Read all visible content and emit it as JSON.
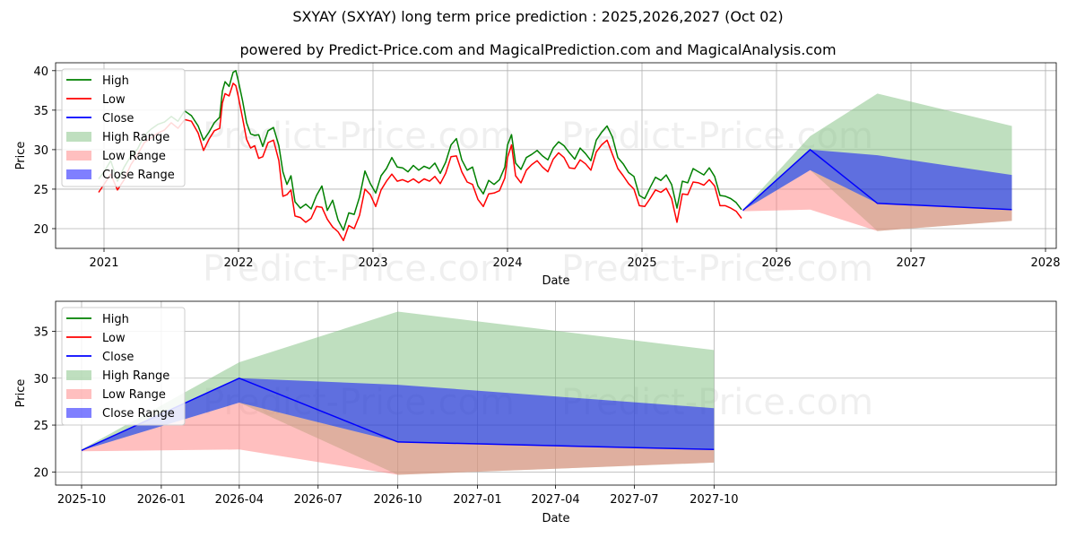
{
  "title": "SXYAY (SXYAY) long term price prediction : 2025,2026,2027 (Oct 02)",
  "subtitle": "powered by Predict-Price.com and MagicalPrediction.com and MagicalAnalysis.com",
  "watermark": "Predict-Price.com",
  "colors": {
    "high": "#008000",
    "low": "#ff0000",
    "close": "#0000ff",
    "high_range": "#7fbf7f",
    "low_range": "#ff7f7f",
    "close_range": "#0000ff",
    "grid": "#b0b0b0"
  },
  "legend": [
    "High",
    "Low",
    "Close",
    "High Range",
    "Low Range",
    "Close Range"
  ],
  "chart_data": [
    {
      "type": "line",
      "name": "history-and-forecast",
      "xlabel": "Date",
      "ylabel": "Price",
      "xlim": [
        2020.64,
        2028.08
      ],
      "ylim": [
        17.5,
        41
      ],
      "xticks": [
        2021,
        2022,
        2023,
        2024,
        2025,
        2026,
        2027,
        2028
      ],
      "xtick_labels": [
        "2021",
        "2022",
        "2023",
        "2024",
        "2025",
        "2026",
        "2027",
        "2028"
      ],
      "yticks": [
        20,
        25,
        30,
        35,
        40
      ],
      "grid": true,
      "legend_position": "top-left",
      "history": {
        "x": [
          2020.96,
          2021.0,
          2021.05,
          2021.1,
          2021.15,
          2021.2,
          2021.25,
          2021.3,
          2021.35,
          2021.4,
          2021.45,
          2021.5,
          2021.55,
          2021.6,
          2021.65,
          2021.7,
          2021.74,
          2021.78,
          2021.82,
          2021.86,
          2021.88,
          2021.9,
          2021.93,
          2021.96,
          2021.98,
          2022.0,
          2022.03,
          2022.06,
          2022.09,
          2022.12,
          2022.15,
          2022.18,
          2022.22,
          2022.26,
          2022.3,
          2022.33,
          2022.36,
          2022.39,
          2022.42,
          2022.46,
          2022.5,
          2022.54,
          2022.58,
          2022.62,
          2022.66,
          2022.7,
          2022.74,
          2022.78,
          2022.82,
          2022.86,
          2022.9,
          2022.94,
          2022.98,
          2023.02,
          2023.06,
          2023.1,
          2023.14,
          2023.18,
          2023.22,
          2023.26,
          2023.3,
          2023.34,
          2023.38,
          2023.42,
          2023.46,
          2023.5,
          2023.54,
          2023.58,
          2023.62,
          2023.66,
          2023.7,
          2023.74,
          2023.78,
          2023.82,
          2023.86,
          2023.9,
          2023.94,
          2023.98,
          2024.0,
          2024.03,
          2024.06,
          2024.1,
          2024.14,
          2024.18,
          2024.22,
          2024.26,
          2024.3,
          2024.34,
          2024.38,
          2024.42,
          2024.46,
          2024.5,
          2024.54,
          2024.58,
          2024.62,
          2024.66,
          2024.7,
          2024.74,
          2024.78,
          2024.82,
          2024.86,
          2024.9,
          2024.94,
          2024.98,
          2025.02,
          2025.06,
          2025.1,
          2025.14,
          2025.18,
          2025.22,
          2025.26,
          2025.3,
          2025.34,
          2025.38,
          2025.42,
          2025.46,
          2025.5,
          2025.54,
          2025.58,
          2025.62,
          2025.66,
          2025.7,
          2025.74
        ],
        "high": [
          26.3,
          27.2,
          28.6,
          26.0,
          27.8,
          29.2,
          30.1,
          31.8,
          32.6,
          33.2,
          33.5,
          34.2,
          33.6,
          34.9,
          34.3,
          33.0,
          31.2,
          32.2,
          33.4,
          34.1,
          37.4,
          38.6,
          38.0,
          39.8,
          40.0,
          38.6,
          36.2,
          33.4,
          32.0,
          31.8,
          31.9,
          30.4,
          32.4,
          32.8,
          30.5,
          27.2,
          25.6,
          26.7,
          23.4,
          22.6,
          23.1,
          22.5,
          24.2,
          25.4,
          22.3,
          23.6,
          21.1,
          19.8,
          22.0,
          21.8,
          24.0,
          27.3,
          25.7,
          24.5,
          26.7,
          27.6,
          29.0,
          27.8,
          27.7,
          27.2,
          28.0,
          27.4,
          27.9,
          27.6,
          28.3,
          27.0,
          28.4,
          30.6,
          31.4,
          28.7,
          27.4,
          27.8,
          25.4,
          24.4,
          26.1,
          25.6,
          26.2,
          27.8,
          30.6,
          31.9,
          28.3,
          27.5,
          29.0,
          29.4,
          29.9,
          29.2,
          28.7,
          30.2,
          31.0,
          30.5,
          29.6,
          28.8,
          30.2,
          29.5,
          28.6,
          31.2,
          32.2,
          33.0,
          31.6,
          29.0,
          28.2,
          27.1,
          26.6,
          24.2,
          23.8,
          25.2,
          26.5,
          26.1,
          26.8,
          25.6,
          22.6,
          26.0,
          25.8,
          27.6,
          27.2,
          26.8,
          27.7,
          26.6,
          24.2,
          24.1,
          23.8,
          23.3,
          22.4
        ],
        "low": [
          24.6,
          25.6,
          26.9,
          24.9,
          26.2,
          28.1,
          29.4,
          30.9,
          31.5,
          32.1,
          32.5,
          33.4,
          32.7,
          33.8,
          33.6,
          32.1,
          29.9,
          31.3,
          32.4,
          32.7,
          35.9,
          37.1,
          36.8,
          38.4,
          38.1,
          36.6,
          34.0,
          31.3,
          30.2,
          30.5,
          28.9,
          29.1,
          30.9,
          31.2,
          28.6,
          24.1,
          24.3,
          24.9,
          21.6,
          21.4,
          20.8,
          21.3,
          22.8,
          22.7,
          21.2,
          20.2,
          19.6,
          18.5,
          20.4,
          20.0,
          21.7,
          25.0,
          24.3,
          22.8,
          24.9,
          26.0,
          26.9,
          26.0,
          26.2,
          25.9,
          26.3,
          25.8,
          26.3,
          26.0,
          26.6,
          25.7,
          27.0,
          29.1,
          29.2,
          27.2,
          25.9,
          25.6,
          23.7,
          22.8,
          24.4,
          24.5,
          24.8,
          26.4,
          29.0,
          30.6,
          26.7,
          25.8,
          27.4,
          28.1,
          28.6,
          27.8,
          27.2,
          28.8,
          29.6,
          29.0,
          27.7,
          27.6,
          28.7,
          28.2,
          27.4,
          29.7,
          30.6,
          31.2,
          29.4,
          27.6,
          26.7,
          25.7,
          25.0,
          22.9,
          22.8,
          23.8,
          24.9,
          24.6,
          25.1,
          23.8,
          20.8,
          24.4,
          24.3,
          25.9,
          25.8,
          25.5,
          26.2,
          25.4,
          22.9,
          22.9,
          22.6,
          22.2,
          21.3
        ]
      },
      "forecast": {
        "x": [
          2025.75,
          2026.25,
          2026.75,
          2027.75
        ],
        "close": [
          22.3,
          30.0,
          23.2,
          22.4
        ],
        "high_range": {
          "upper": [
            22.4,
            31.7,
            37.1,
            33.0
          ],
          "lower": [
            22.3,
            27.4,
            19.7,
            21.0
          ]
        },
        "low_range": {
          "upper": [
            22.3,
            27.4,
            23.2,
            22.4
          ],
          "lower": [
            22.2,
            22.4,
            19.7,
            21.0
          ]
        },
        "close_range": {
          "upper": [
            22.3,
            30.0,
            29.3,
            26.8
          ],
          "lower": [
            22.3,
            27.4,
            23.2,
            22.4
          ]
        }
      }
    },
    {
      "type": "line",
      "name": "forecast-zoom",
      "xlabel": "Date",
      "ylabel": "Price",
      "xlim": [
        -30,
        1125
      ],
      "ylim": [
        18.6,
        38.2
      ],
      "xticks": [
        0,
        92,
        182,
        273,
        365,
        457,
        547,
        638,
        730
      ],
      "xtick_labels": [
        "2025-10",
        "2026-01",
        "2026-04",
        "2026-07",
        "2026-10",
        "2027-01",
        "2027-04",
        "2027-07",
        "2027-10"
      ],
      "yticks": [
        20,
        25,
        30,
        35
      ],
      "grid": true,
      "legend_position": "top-left",
      "forecast": {
        "x": [
          0,
          182,
          365,
          730
        ],
        "close": [
          22.3,
          30.0,
          23.2,
          22.4
        ],
        "high_range": {
          "upper": [
            22.4,
            31.7,
            37.1,
            33.0
          ],
          "lower": [
            22.3,
            27.4,
            19.7,
            21.0
          ]
        },
        "low_range": {
          "upper": [
            22.3,
            27.4,
            23.2,
            22.4
          ],
          "lower": [
            22.2,
            22.4,
            19.7,
            21.0
          ]
        },
        "close_range": {
          "upper": [
            22.3,
            30.0,
            29.3,
            26.8
          ],
          "lower": [
            22.3,
            27.4,
            23.2,
            22.4
          ]
        }
      }
    }
  ]
}
